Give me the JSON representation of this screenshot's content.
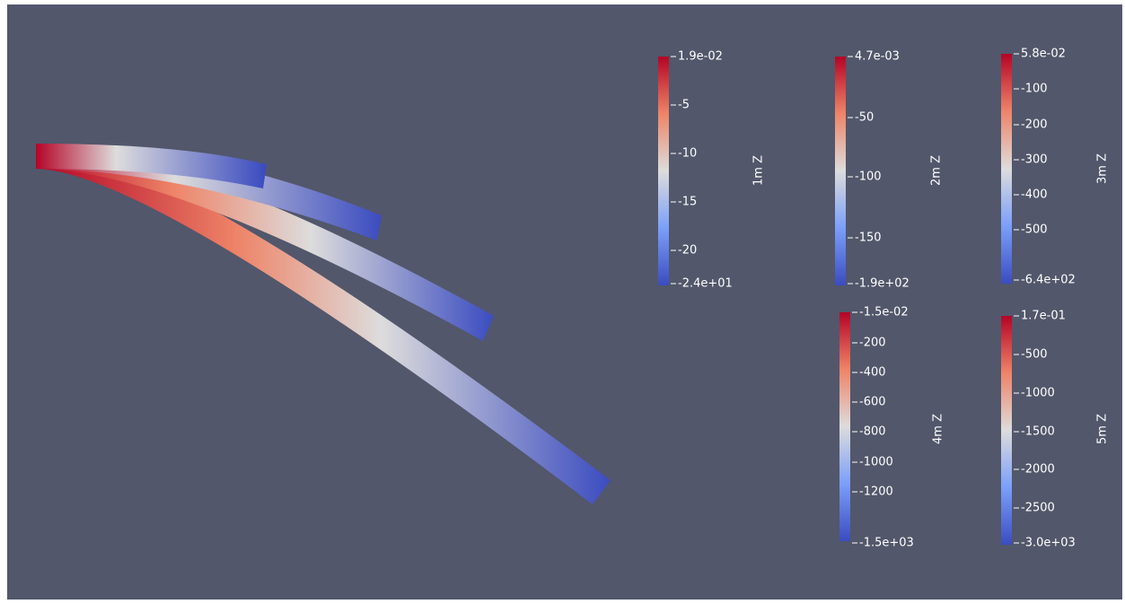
{
  "color_bars": [
    {
      "title": "1m Z",
      "labels": [
        "1.9e-02",
        "-5",
        "-10",
        "-15",
        "-20",
        "-2.4e+01"
      ]
    },
    {
      "title": "2m Z",
      "labels": [
        "4.7e-03",
        "-50",
        "-100",
        "-150",
        "-1.9e+02"
      ]
    },
    {
      "title": "3m Z",
      "labels": [
        "5.8e-02",
        "-100",
        "-200",
        "-300",
        "-400",
        "-500",
        "-6.4e+02"
      ]
    },
    {
      "title": "4m Z",
      "labels": [
        "-1.5e-02",
        "-200",
        "-400",
        "-600",
        "-800",
        "-1000",
        "-1200",
        "-1.5e+03"
      ]
    },
    {
      "title": "5m Z",
      "labels": [
        "1.7e-01",
        "-500",
        "-1000",
        "-1500",
        "-2000",
        "-2500",
        "-3.0e+03"
      ]
    }
  ]
}
